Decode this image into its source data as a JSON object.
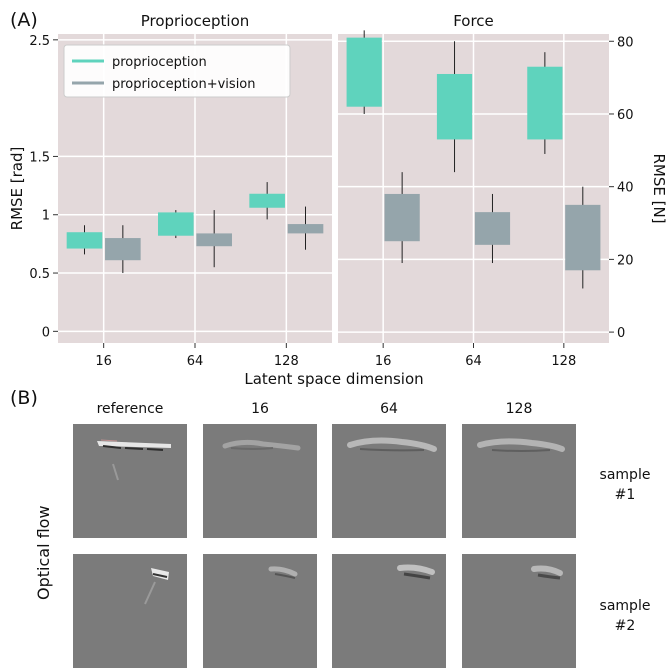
{
  "panel_a": {
    "letter": "(A)"
  },
  "panel_b": {
    "letter": "(B)",
    "side_label": "Optical flow",
    "columns": [
      "reference",
      "16",
      "64",
      "128"
    ],
    "rows": [
      {
        "name_line1": "sample",
        "name_line2": "#1"
      },
      {
        "name_line1": "sample",
        "name_line2": "#2"
      }
    ]
  },
  "chart_data": [
    {
      "type": "box",
      "title": "Proprioception",
      "xlabel": "Latent space dimension",
      "ylabel": "RMSE [rad]",
      "categories": [
        "16",
        "64",
        "128"
      ],
      "ylim": [
        -0.1,
        2.55
      ],
      "yticks": [
        0,
        0.5,
        1,
        1.5,
        2.5
      ],
      "ytick_labels": [
        "0",
        "0.5",
        "1",
        "1.5",
        "2.5"
      ],
      "grid": true,
      "legend": {
        "position": "top-left",
        "entries": [
          "proprioception",
          "proprioception+vision"
        ]
      },
      "colors": {
        "proprioception": "#5fd3bd",
        "proprioception+vision": "#95a5ab",
        "background": "#e3d9da"
      },
      "series": [
        {
          "name": "proprioception",
          "values": [
            {
              "category": "16",
              "whisker_low": 0.66,
              "box_low": 0.71,
              "box_high": 0.85,
              "whisker_high": 0.91
            },
            {
              "category": "64",
              "whisker_low": 0.8,
              "box_low": 0.82,
              "box_high": 1.02,
              "whisker_high": 1.04
            },
            {
              "category": "128",
              "whisker_low": 0.96,
              "box_low": 1.06,
              "box_high": 1.18,
              "whisker_high": 1.28
            }
          ]
        },
        {
          "name": "proprioception+vision",
          "values": [
            {
              "category": "16",
              "whisker_low": 0.5,
              "box_low": 0.61,
              "box_high": 0.8,
              "whisker_high": 0.91
            },
            {
              "category": "64",
              "whisker_low": 0.55,
              "box_low": 0.73,
              "box_high": 0.84,
              "whisker_high": 1.04
            },
            {
              "category": "128",
              "whisker_low": 0.7,
              "box_low": 0.84,
              "box_high": 0.92,
              "whisker_high": 1.07
            }
          ]
        }
      ]
    },
    {
      "type": "box",
      "title": "Force",
      "xlabel": "Latent space dimension",
      "ylabel": "RMSE [N]",
      "categories": [
        "16",
        "64",
        "128"
      ],
      "ylim": [
        -3,
        82
      ],
      "yticks": [
        0,
        20,
        40,
        60,
        80
      ],
      "ytick_labels": [
        "0",
        "20",
        "40",
        "60",
        "80"
      ],
      "grid": true,
      "colors": {
        "proprioception": "#5fd3bd",
        "proprioception+vision": "#95a5ab",
        "background": "#e3d9da"
      },
      "series": [
        {
          "name": "proprioception",
          "values": [
            {
              "category": "16",
              "whisker_low": 60,
              "box_low": 62,
              "box_high": 81,
              "whisker_high": 83
            },
            {
              "category": "64",
              "whisker_low": 44,
              "box_low": 53,
              "box_high": 71,
              "whisker_high": 80
            },
            {
              "category": "128",
              "whisker_low": 49,
              "box_low": 53,
              "box_high": 73,
              "whisker_high": 77
            }
          ]
        },
        {
          "name": "proprioception+vision",
          "values": [
            {
              "category": "16",
              "whisker_low": 19,
              "box_low": 25,
              "box_high": 38,
              "whisker_high": 44
            },
            {
              "category": "64",
              "whisker_low": 19,
              "box_low": 24,
              "box_high": 33,
              "whisker_high": 38
            },
            {
              "category": "128",
              "whisker_low": 12,
              "box_low": 17,
              "box_high": 35,
              "whisker_high": 40
            }
          ]
        }
      ]
    }
  ]
}
